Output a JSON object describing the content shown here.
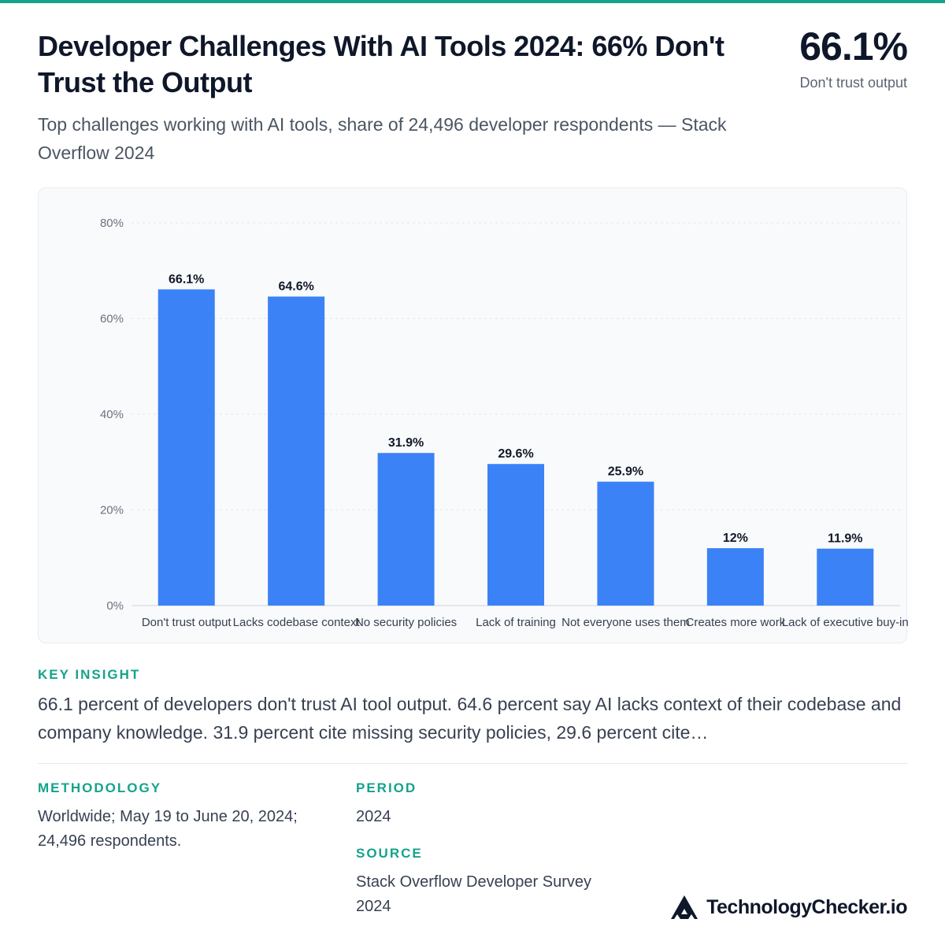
{
  "header": {
    "title": "Developer Challenges With AI Tools 2024: 66% Don't Trust the Output",
    "headline_value": "66.1%",
    "headline_label": "Don't trust output",
    "subtitle": "Top challenges working with AI tools, share of 24,496 developer respondents — Stack Overflow 2024"
  },
  "chart_data": {
    "type": "bar",
    "categories": [
      "Don't trust output",
      "Lacks codebase context",
      "No security policies",
      "Lack of training",
      "Not everyone uses them",
      "Creates more work",
      "Lack of executive buy-in"
    ],
    "values": [
      66.1,
      64.6,
      31.9,
      29.6,
      25.9,
      12,
      11.9
    ],
    "data_labels": [
      "66.1%",
      "64.6%",
      "31.9%",
      "29.6%",
      "25.9%",
      "12%",
      "11.9%"
    ],
    "yticks": [
      "0%",
      "20%",
      "40%",
      "60%",
      "80%"
    ],
    "ylim": [
      0,
      80
    ],
    "grid": true,
    "bar_color": "#3b82f6"
  },
  "insight": {
    "label": "KEY INSIGHT",
    "text": "66.1 percent of developers don't trust AI tool output. 64.6 percent say AI lacks context of their codebase and company knowledge. 31.9 percent cite missing security policies, 29.6 percent cite…"
  },
  "methodology": {
    "label": "METHODOLOGY",
    "text": "Worldwide; May 19 to June 20, 2024; 24,496 respondents."
  },
  "period": {
    "label": "PERIOD",
    "text": "2024"
  },
  "source": {
    "label": "SOURCE",
    "text": "Stack Overflow Developer Survey 2024"
  },
  "brand": {
    "name": "TechnologyChecker.io",
    "logo_icon": "triangle-logo-icon"
  }
}
